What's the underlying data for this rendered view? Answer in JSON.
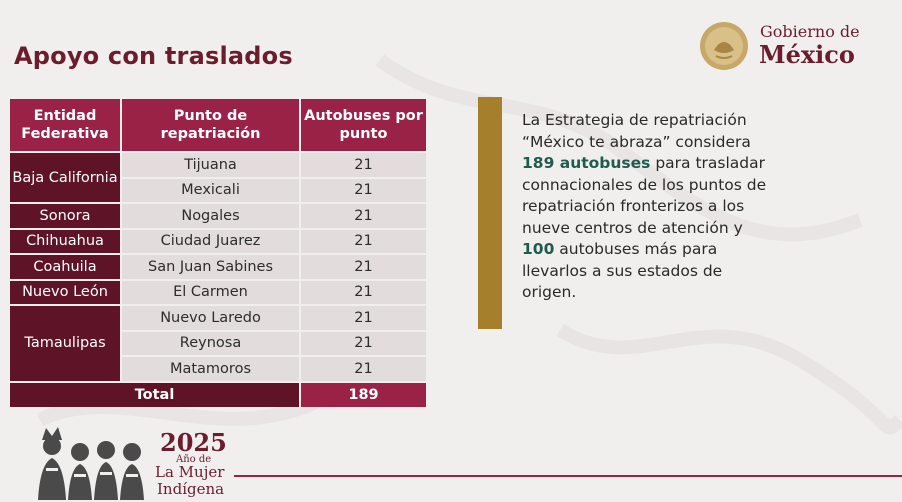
{
  "slide": {
    "title": "Apoyo con traslados"
  },
  "branding": {
    "gob_line1": "Gobierno de",
    "gob_line2": "México",
    "year": "2025",
    "anio_de": "Año de",
    "mujer": "La Mujer",
    "indigena": "Indígena"
  },
  "table": {
    "headers": [
      "Entidad Federativa",
      "Punto de repatriación",
      "Autobuses por punto"
    ],
    "entities": {
      "baja_california": "Baja California",
      "sonora": "Sonora",
      "chihuahua": "Chihuahua",
      "coahuila": "Coahuila",
      "nuevo_leon": "Nuevo León",
      "tamaulipas": "Tamaulipas"
    },
    "rows": [
      {
        "punto": "Tijuana",
        "buses": "21"
      },
      {
        "punto": "Mexicali",
        "buses": "21"
      },
      {
        "punto": "Nogales",
        "buses": "21"
      },
      {
        "punto": "Ciudad Juarez",
        "buses": "21"
      },
      {
        "punto": "San Juan Sabines",
        "buses": "21"
      },
      {
        "punto": "El Carmen",
        "buses": "21"
      },
      {
        "punto": "Nuevo Laredo",
        "buses": "21"
      },
      {
        "punto": "Reynosa",
        "buses": "21"
      },
      {
        "punto": "Matamoros",
        "buses": "21"
      }
    ],
    "total_label": "Total",
    "total_value": "189"
  },
  "paragraph": {
    "p1": "La Estrategia de repatriación “México te abraza” considera ",
    "h1": "189 autobuses",
    "p2": " para trasladar connacionales de los puntos de repatriación fronterizos a los nueve centros de atención y ",
    "h2": "100",
    "p3": " autobuses más para llevarlos a sus estados de origen."
  },
  "colors": {
    "guinda": "#9b2247",
    "guinda_dark": "#5f1327",
    "gold": "#a57f2c",
    "green_highlight": "#1f5c4f",
    "cell_bg": "#e3dcdc"
  }
}
